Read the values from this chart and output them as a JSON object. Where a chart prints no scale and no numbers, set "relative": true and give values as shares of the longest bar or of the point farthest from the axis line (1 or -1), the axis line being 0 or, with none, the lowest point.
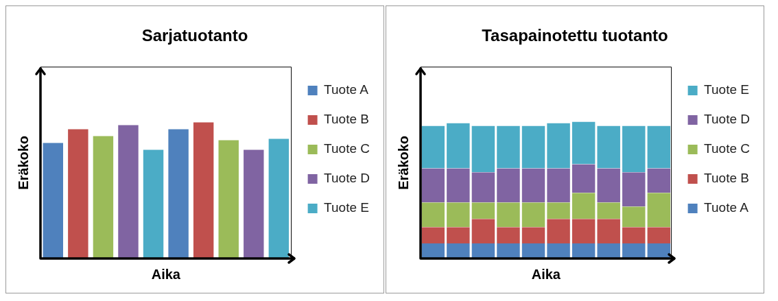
{
  "chart_data": [
    {
      "type": "bar",
      "title": "Sarjatuotanto",
      "xlabel": "Aika",
      "ylabel": "Eräkoko",
      "relative": true,
      "stacked": true,
      "legend": "right",
      "categories": [
        null,
        null,
        null,
        null,
        null,
        null,
        null,
        null,
        null,
        null
      ],
      "series": [
        {
          "name": "Tuote A",
          "color": "#4f81bd",
          "values": [
            0.85,
            null,
            null,
            null,
            null,
            0.95,
            null,
            null,
            null,
            null
          ]
        },
        {
          "name": "Tuote B",
          "color": "#c0504d",
          "values": [
            null,
            0.95,
            null,
            null,
            null,
            null,
            1,
            null,
            null,
            null
          ]
        },
        {
          "name": "Tuote C",
          "color": "#9bbb59",
          "values": [
            null,
            null,
            0.9,
            null,
            null,
            null,
            null,
            0.87,
            null,
            null
          ]
        },
        {
          "name": "Tuote D",
          "color": "#8064a2",
          "values": [
            null,
            null,
            null,
            0.98,
            null,
            null,
            null,
            null,
            0.8,
            null
          ]
        },
        {
          "name": "Tuote E",
          "color": "#4bacc6",
          "values": [
            null,
            null,
            null,
            null,
            0.8,
            null,
            null,
            null,
            null,
            0.88
          ]
        }
      ]
    },
    {
      "type": "bar",
      "title": "Tasapainotettu tuotanto",
      "xlabel": "Aika",
      "ylabel": "Eräkoko",
      "relative": true,
      "stacked": true,
      "legend": "right",
      "categories": [
        null,
        null,
        null,
        null,
        null,
        null,
        null,
        null,
        null,
        null
      ],
      "series": [
        {
          "name": "Tuote A",
          "color": "#4f81bd",
          "values": [
            0.11,
            0.11,
            0.11,
            0.11,
            0.11,
            0.11,
            0.11,
            0.11,
            0.11,
            0.11
          ]
        },
        {
          "name": "Tuote B",
          "color": "#c0504d",
          "values": [
            0.12,
            0.12,
            0.18,
            0.12,
            0.12,
            0.18,
            0.18,
            0.18,
            0.12,
            0.12
          ]
        },
        {
          "name": "Tuote C",
          "color": "#9bbb59",
          "values": [
            0.18,
            0.18,
            0.12,
            0.18,
            0.18,
            0.12,
            0.19,
            0.12,
            0.15,
            0.25
          ]
        },
        {
          "name": "Tuote D",
          "color": "#8064a2",
          "values": [
            0.25,
            0.25,
            0.22,
            0.25,
            0.25,
            0.25,
            0.21,
            0.25,
            0.25,
            0.18
          ]
        },
        {
          "name": "Tuote E",
          "color": "#4bacc6",
          "values": [
            0.31,
            0.33,
            0.34,
            0.31,
            0.31,
            0.33,
            0.31,
            0.31,
            0.34,
            0.31
          ]
        }
      ]
    }
  ]
}
